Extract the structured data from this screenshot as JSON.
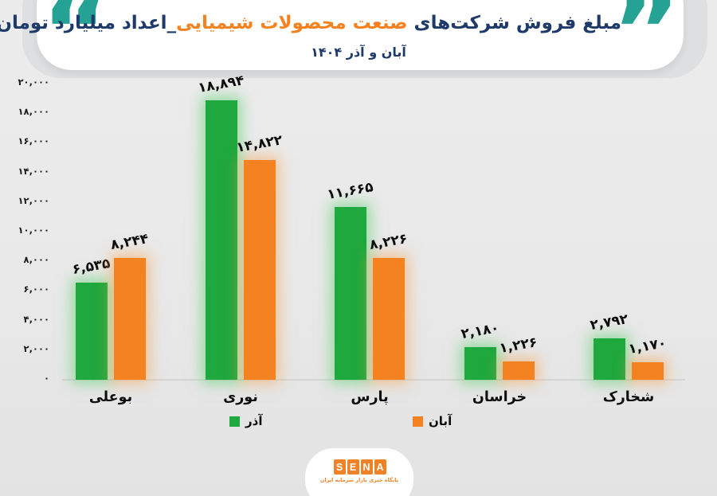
{
  "colors": {
    "navy": "#1d3a6b",
    "orange": "#f5821f",
    "teal": "#26a295",
    "bar_green": "#1fa83d",
    "bar_orange": "#f58220",
    "orange_logo": "#ef8226"
  },
  "header": {
    "quote_open": "“",
    "quote_close": "”",
    "title_part_navy1": "مبلغ فروش شرکت‌های ",
    "title_part_orange": "صنعت محصولات شیمیایی",
    "title_part_navy2": "_اعداد میلیارد تومان",
    "subtitle": "آبان و آذر ۱۴۰۴"
  },
  "chart_data": {
    "type": "bar",
    "title": "مبلغ فروش شرکت‌های صنعت محصولات شیمیایی_اعداد میلیارد تومان",
    "subtitle": "آبان و آذر ۱۴۰۴",
    "unit": "میلیارد تومان",
    "categories": [
      "بوعلی",
      "نوری",
      "پارس",
      "خراسان",
      "شخارک"
    ],
    "series": [
      {
        "name": "آذر",
        "color": "#1fa83d",
        "values": [
          6535,
          18894,
          11665,
          2180,
          2792
        ],
        "labels": [
          "۶,۵۳۵",
          "۱۸,۸۹۴",
          "۱۱,۶۶۵",
          "۲,۱۸۰",
          "۲,۷۹۲"
        ]
      },
      {
        "name": "آبان",
        "color": "#f58220",
        "values": [
          8244,
          14822,
          8226,
          1226,
          1170
        ],
        "labels": [
          "۸,۲۴۴",
          "۱۴,۸۲۲",
          "۸,۲۲۶",
          "۱,۲۲۶",
          "۱,۱۷۰"
        ]
      }
    ],
    "ylim": [
      0,
      20000
    ],
    "y_ticks": {
      "values": [
        20000,
        18000,
        16000,
        14000,
        12000,
        10000,
        8000,
        6000,
        4000,
        2000,
        0
      ],
      "labels": [
        "۲۰,۰۰۰",
        "۱۸,۰۰۰",
        "۱۶,۰۰۰",
        "۱۴,۰۰۰",
        "۱۲,۰۰۰",
        "۱۰,۰۰۰",
        "۸,۰۰۰",
        "۶,۰۰۰",
        "۴,۰۰۰",
        "۲,۰۰۰",
        "۰"
      ]
    },
    "grid": false,
    "legend_position": "bottom"
  },
  "legend": [
    {
      "label": "آذر",
      "color": "#1fa83d"
    },
    {
      "label": "آبان",
      "color": "#f58220"
    }
  ],
  "footer": {
    "logo_letters": [
      "S",
      "E",
      "N",
      "A"
    ],
    "logo_caption": "پایگاه خبری بازار سرمایه ایران"
  }
}
